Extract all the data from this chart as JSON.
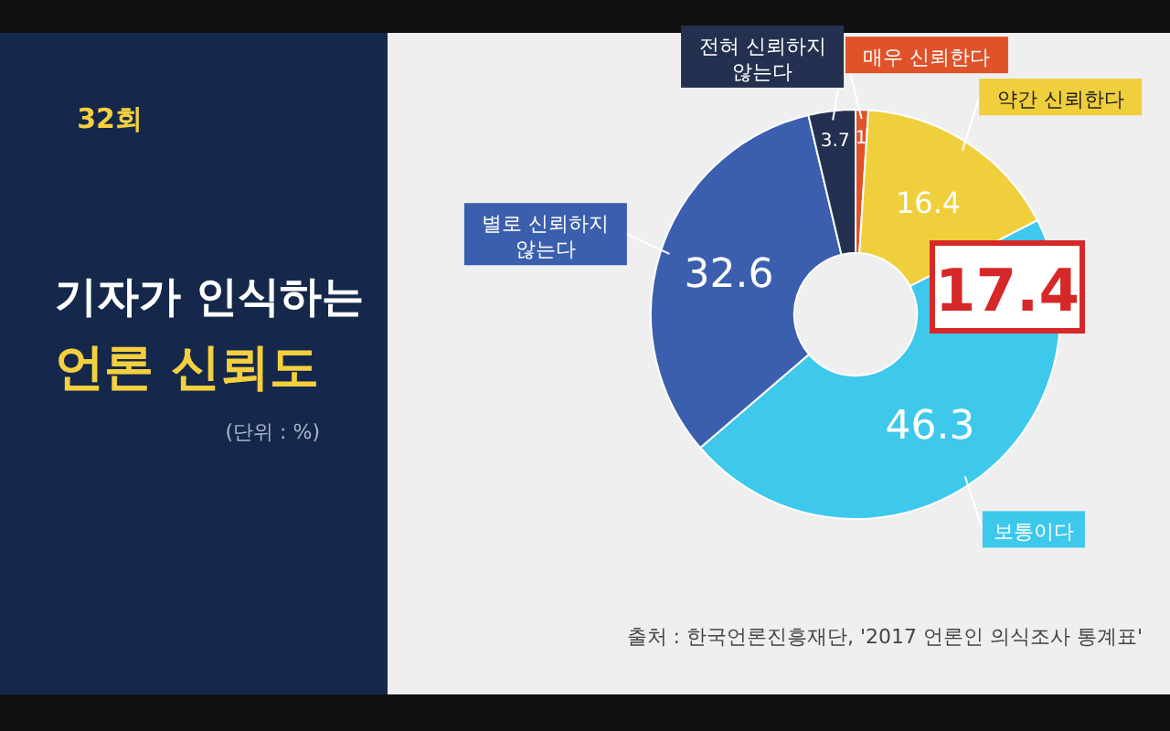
{
  "chart_data": {
    "type": "donut",
    "title": "기자가 인식하는 언론 신뢰도",
    "subtitle": "(단위 : %)",
    "categories": [
      "매우 신뢰한다",
      "약간 신뢰한다",
      "보통이다",
      "별로 신뢰하지 않는다",
      "전혀 신뢰하지 않는다"
    ],
    "values": [
      1,
      16.4,
      46.3,
      32.6,
      3.7
    ],
    "colors": [
      "#e0522a",
      "#f0cf3c",
      "#3dc8ec",
      "#3b5fae",
      "#23304f"
    ],
    "data_labels": true,
    "annotations": [
      "17.4",
      "출처 : 한국언론진흥재단, '2017 언론인 의식조사 통계표'",
      "32회"
    ]
  }
}
